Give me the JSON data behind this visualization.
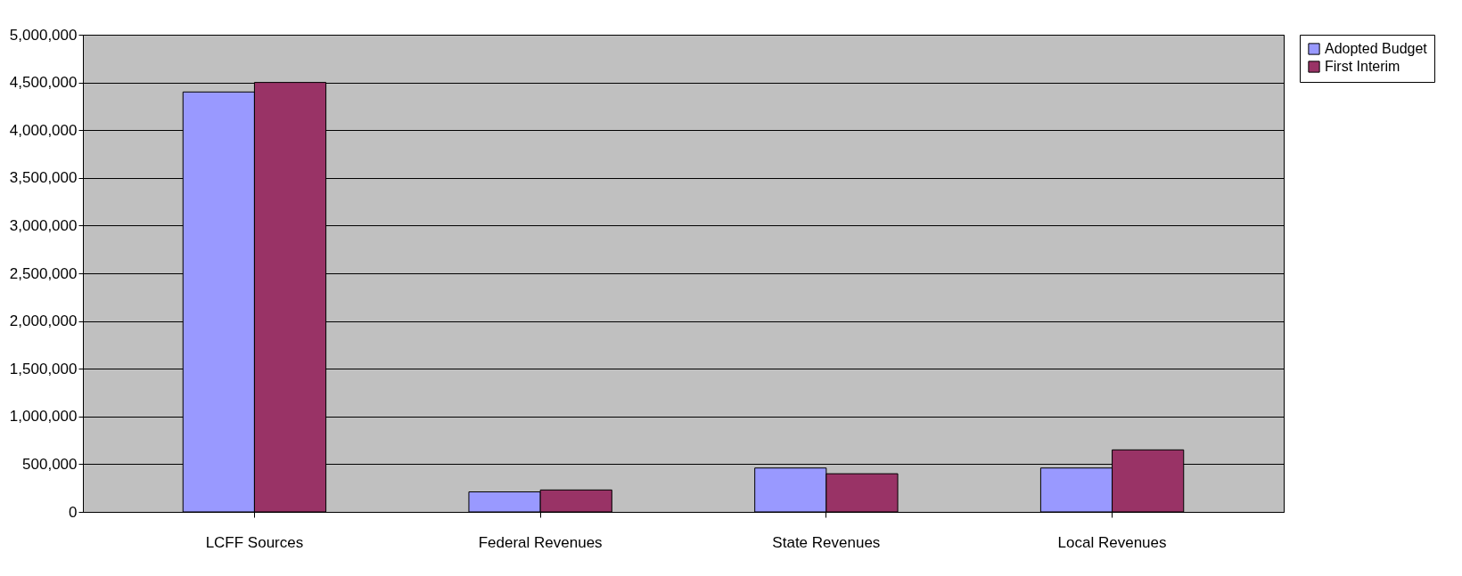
{
  "chart_data": {
    "type": "bar",
    "categories": [
      "LCFF Sources",
      "Federal Revenues",
      "State Revenues",
      "Local Revenues"
    ],
    "series": [
      {
        "name": "Adopted Budget",
        "color": "#9999ff",
        "values": [
          4400000,
          210000,
          460000,
          460000
        ]
      },
      {
        "name": "First Interim",
        "color": "#993366",
        "values": [
          4500000,
          230000,
          400000,
          650000
        ]
      }
    ],
    "ylim": [
      0,
      5000000
    ],
    "yticks": [
      0,
      {
        "value": 500000,
        "label": "500,000"
      },
      {
        "value": 1000000,
        "label": "1,000,000"
      },
      {
        "value": 1500000,
        "label": "1,500,000"
      },
      {
        "value": 2000000,
        "label": "2,000,000"
      },
      {
        "value": 2500000,
        "label": "2,500,000"
      },
      {
        "value": 3000000,
        "label": "3,000,000"
      },
      {
        "value": 3500000,
        "label": "3,500,000"
      },
      {
        "value": 4000000,
        "label": "4,000,000"
      },
      {
        "value": 4500000,
        "label": "4,500,000"
      },
      {
        "value": 5000000,
        "label": "5,000,000"
      }
    ],
    "grid": "y",
    "legend": "right"
  }
}
